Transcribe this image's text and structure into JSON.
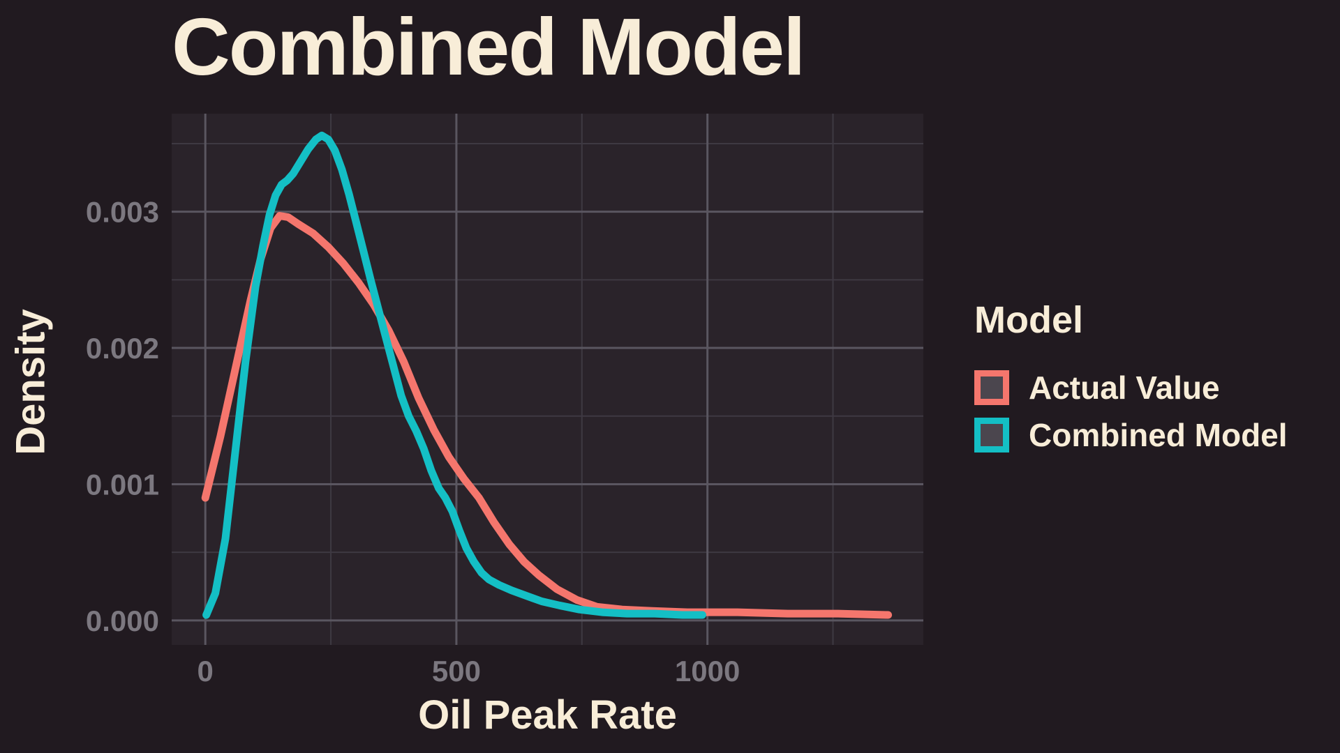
{
  "title": "Combined Model",
  "axes": {
    "x_label": "Oil Peak Rate",
    "y_label": "Density"
  },
  "legend": {
    "title": "Model"
  },
  "colors": {
    "background": "#211a20",
    "panel": "#2a232a",
    "grid_major": "#5a5660",
    "grid_minor": "#3e3942",
    "title_text": "#f8edd8",
    "tick_text": "#7c7880",
    "legend_key_fill": "#4b464e"
  },
  "chart_data": {
    "type": "line",
    "title": "Combined Model",
    "xlabel": "Oil Peak Rate",
    "ylabel": "Density",
    "xlim": [
      -67,
      1430
    ],
    "ylim": [
      -0.00018,
      0.00372
    ],
    "grid": true,
    "legend_position": "right",
    "x_ticks": [
      {
        "value": 0,
        "label": "0"
      },
      {
        "value": 500,
        "label": "500"
      },
      {
        "value": 1000,
        "label": "1000"
      }
    ],
    "y_ticks": [
      {
        "value": 0,
        "label": "0.000"
      },
      {
        "value": 0.001,
        "label": "0.001"
      },
      {
        "value": 0.002,
        "label": "0.002"
      },
      {
        "value": 0.003,
        "label": "0.003"
      }
    ],
    "x_minor": [
      250,
      750,
      1250
    ],
    "y_minor": [
      0.0005,
      0.0015,
      0.0025,
      0.0035
    ],
    "series": [
      {
        "name": "Actual Value",
        "color": "#f5766d",
        "points": [
          [
            0,
            0.0009
          ],
          [
            30,
            0.00135
          ],
          [
            60,
            0.00185
          ],
          [
            90,
            0.00235
          ],
          [
            110,
            0.00265
          ],
          [
            130,
            0.00288
          ],
          [
            148,
            0.00297
          ],
          [
            165,
            0.00296
          ],
          [
            185,
            0.00291
          ],
          [
            215,
            0.00284
          ],
          [
            245,
            0.00274
          ],
          [
            275,
            0.00262
          ],
          [
            305,
            0.00248
          ],
          [
            335,
            0.00232
          ],
          [
            365,
            0.00213
          ],
          [
            395,
            0.0019
          ],
          [
            425,
            0.00163
          ],
          [
            455,
            0.0014
          ],
          [
            485,
            0.0012
          ],
          [
            515,
            0.00104
          ],
          [
            545,
            0.0009
          ],
          [
            575,
            0.00072
          ],
          [
            605,
            0.00056
          ],
          [
            635,
            0.00043
          ],
          [
            665,
            0.00033
          ],
          [
            700,
            0.00023
          ],
          [
            740,
            0.00015
          ],
          [
            780,
            0.0001
          ],
          [
            830,
            8e-05
          ],
          [
            890,
            7e-05
          ],
          [
            960,
            6e-05
          ],
          [
            1060,
            6e-05
          ],
          [
            1160,
            5e-05
          ],
          [
            1260,
            5e-05
          ],
          [
            1360,
            4e-05
          ]
        ]
      },
      {
        "name": "Combined Model",
        "color": "#14bfc5",
        "points": [
          [
            2,
            4e-05
          ],
          [
            20,
            0.0002
          ],
          [
            40,
            0.0006
          ],
          [
            60,
            0.00125
          ],
          [
            80,
            0.0019
          ],
          [
            100,
            0.00245
          ],
          [
            115,
            0.00275
          ],
          [
            128,
            0.00298
          ],
          [
            140,
            0.00312
          ],
          [
            152,
            0.0032
          ],
          [
            163,
            0.00323
          ],
          [
            175,
            0.00328
          ],
          [
            190,
            0.00337
          ],
          [
            205,
            0.00346
          ],
          [
            220,
            0.00353
          ],
          [
            232,
            0.00356
          ],
          [
            245,
            0.00353
          ],
          [
            258,
            0.00345
          ],
          [
            272,
            0.00331
          ],
          [
            286,
            0.00313
          ],
          [
            300,
            0.00293
          ],
          [
            315,
            0.00271
          ],
          [
            330,
            0.00249
          ],
          [
            345,
            0.00228
          ],
          [
            360,
            0.00207
          ],
          [
            375,
            0.00186
          ],
          [
            390,
            0.00165
          ],
          [
            405,
            0.0015
          ],
          [
            420,
            0.00139
          ],
          [
            435,
            0.00126
          ],
          [
            450,
            0.0011
          ],
          [
            465,
            0.00097
          ],
          [
            478,
            0.0009
          ],
          [
            492,
            0.0008
          ],
          [
            506,
            0.00066
          ],
          [
            520,
            0.00053
          ],
          [
            535,
            0.00043
          ],
          [
            550,
            0.00035
          ],
          [
            565,
            0.0003
          ],
          [
            585,
            0.00026
          ],
          [
            610,
            0.00022
          ],
          [
            640,
            0.00018
          ],
          [
            670,
            0.00014
          ],
          [
            705,
            0.00011
          ],
          [
            745,
            8e-05
          ],
          [
            790,
            6e-05
          ],
          [
            840,
            5e-05
          ],
          [
            895,
            5e-05
          ],
          [
            950,
            4e-05
          ],
          [
            990,
            4e-05
          ]
        ]
      }
    ]
  }
}
